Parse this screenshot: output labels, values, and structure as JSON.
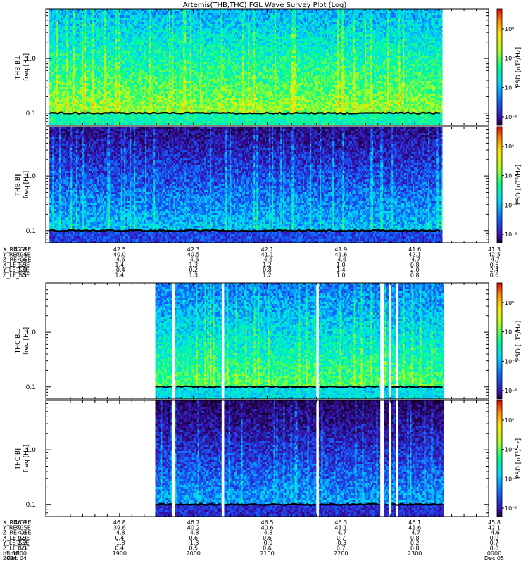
{
  "title": "Artemis(THB,THC) FGL Wave Survey Plot (Log)",
  "colors": {
    "background": "#ffffff",
    "axis": "#000000",
    "gap": "#ffffff",
    "fce_trace": "#000000",
    "colormap": [
      "#1a0030",
      "#3a0fb0",
      "#1060ff",
      "#00d8ff",
      "#00ff90",
      "#a8ff20",
      "#ffe800",
      "#ff8800",
      "#e80000"
    ]
  },
  "chart_data": [
    {
      "type": "heatmap",
      "panel": "THB B_L",
      "ylabel": "freq [Hz]",
      "probe_label": "THB B⊥",
      "yscale": "log",
      "ylim": [
        0.06,
        8.0
      ],
      "yticks": [
        "0.1",
        "1.0"
      ],
      "colorbar_label": "PSD [nT²/Hz]",
      "colorbar_ticks": [
        "10⁰",
        "10⁻²",
        "10⁻⁴",
        "10⁻⁶"
      ],
      "time_range": [
        "1800",
        "0000"
      ],
      "data_coverage": [
        [
          "1803",
          "2322"
        ]
      ],
      "gaps": [],
      "level": 0.62,
      "fce_trace_hz": 0.1
    },
    {
      "type": "heatmap",
      "panel": "THB B||",
      "ylabel": "freq [Hz]",
      "probe_label": "THB B∥",
      "yscale": "log",
      "ylim": [
        0.06,
        8.0
      ],
      "yticks": [
        "0.1",
        "1.0"
      ],
      "colorbar_label": "PSD [nT²/Hz]",
      "colorbar_ticks": [
        "10⁰",
        "10⁻²",
        "10⁻⁴",
        "10⁻⁶"
      ],
      "time_range": [
        "1800",
        "0000"
      ],
      "data_coverage": [
        [
          "1803",
          "2322"
        ]
      ],
      "gaps": [],
      "level": 0.36,
      "fce_trace_hz": 0.1
    },
    {
      "type": "heatmap",
      "panel": "THC B_L",
      "ylabel": "freq [Hz]",
      "probe_label": "THC B⊥",
      "yscale": "log",
      "ylim": [
        0.06,
        8.0
      ],
      "yticks": [
        "0.1",
        "1.0"
      ],
      "colorbar_label": "PSD [nT²/Hz]",
      "colorbar_ticks": [
        "10⁰",
        "10⁻²",
        "10⁻⁴",
        "10⁻⁶"
      ],
      "time_range": [
        "1800",
        "0000"
      ],
      "data_coverage": [
        [
          "1929",
          "2323"
        ]
      ],
      "gaps": [
        [
          "1943",
          "1945"
        ],
        [
          "2023",
          "2025"
        ],
        [
          "2140",
          "2142"
        ],
        [
          "2232",
          "2235"
        ],
        [
          "2239",
          "2241"
        ],
        [
          "2245",
          "2246"
        ]
      ],
      "level": 0.55,
      "fce_trace_hz": 0.1
    },
    {
      "type": "heatmap",
      "panel": "THC B||",
      "ylabel": "freq [Hz]",
      "probe_label": "THC B∥",
      "yscale": "log",
      "ylim": [
        0.06,
        8.0
      ],
      "yticks": [
        "0.1",
        "1.0"
      ],
      "colorbar_label": "PSD [nT²/Hz]",
      "colorbar_ticks": [
        "10⁰",
        "10⁻²",
        "10⁻⁴",
        "10⁻⁶"
      ],
      "time_range": [
        "1800",
        "0000"
      ],
      "data_coverage": [
        [
          "1929",
          "2323"
        ]
      ],
      "gaps": [
        [
          "1943",
          "1945"
        ],
        [
          "2023",
          "2025"
        ],
        [
          "2140",
          "2142"
        ],
        [
          "2232",
          "2235"
        ],
        [
          "2239",
          "2241"
        ],
        [
          "2245",
          "2246"
        ]
      ],
      "level": 0.32,
      "fce_trace_hz": 0.1
    }
  ],
  "ephem_thb": {
    "labels": [
      "X_RE_GSE",
      "Y_RE_GSE",
      "Z_RE_GSE",
      "X_LE_SSE",
      "Y_LE_SSE",
      "Z_LE_SSE"
    ],
    "columns": [
      [
        "42.8",
        "39.4",
        "-4.6",
        "1.3",
        "-1.0",
        "1.5"
      ],
      [
        "42.5",
        "40.0",
        "-4.6",
        "1.4",
        "-0.4",
        "1.4"
      ],
      [
        "42.3",
        "40.5",
        "-4.6",
        "1.3",
        "0.2",
        "1.3"
      ],
      [
        "42.1",
        "41.1",
        "-4.6",
        "1.2",
        "0.8",
        "1.2"
      ],
      [
        "41.9",
        "41.6",
        "-4.6",
        "1.0",
        "1.4",
        "1.0"
      ],
      [
        "41.6",
        "42.1",
        "-4.7",
        "0.8",
        "2.0",
        "0.8"
      ],
      [
        "41.3",
        "42.5",
        "-4.7",
        "0.6",
        "2.4",
        "0.6"
      ]
    ]
  },
  "ephem_thc": {
    "labels": [
      "X_RE_GSE",
      "Y_RE_GSE",
      "Z_RE_GSE",
      "X_LE_SSE",
      "Y_LE_SSE",
      "Z_LE_SSE",
      "hhmm",
      "2024"
    ],
    "columns": [
      [
        "46.9",
        "39.1",
        "-4.9",
        "0.3",
        "-2.2",
        "0.3",
        "1800",
        "Dec 04"
      ],
      [
        "46.8",
        "39.6",
        "-4.8",
        "0.4",
        "-1.8",
        "0.4",
        "1900",
        ""
      ],
      [
        "46.7",
        "40.2",
        "-4.8",
        "0.6",
        "-1.3",
        "0.5",
        "2000",
        ""
      ],
      [
        "46.5",
        "40.6",
        "-4.8",
        "0.6",
        "-0.9",
        "0.6",
        "2100",
        ""
      ],
      [
        "46.3",
        "41.1",
        "-4.7",
        "0.7",
        "-0.3",
        "0.7",
        "2200",
        ""
      ],
      [
        "46.1",
        "41.6",
        "-4.7",
        "0.8",
        "0.2",
        "0.8",
        "2300",
        ""
      ],
      [
        "45.8",
        "42.1",
        "-4.6",
        "0.9",
        "0.7",
        "0.8",
        "0000",
        "Dec 05"
      ]
    ]
  }
}
